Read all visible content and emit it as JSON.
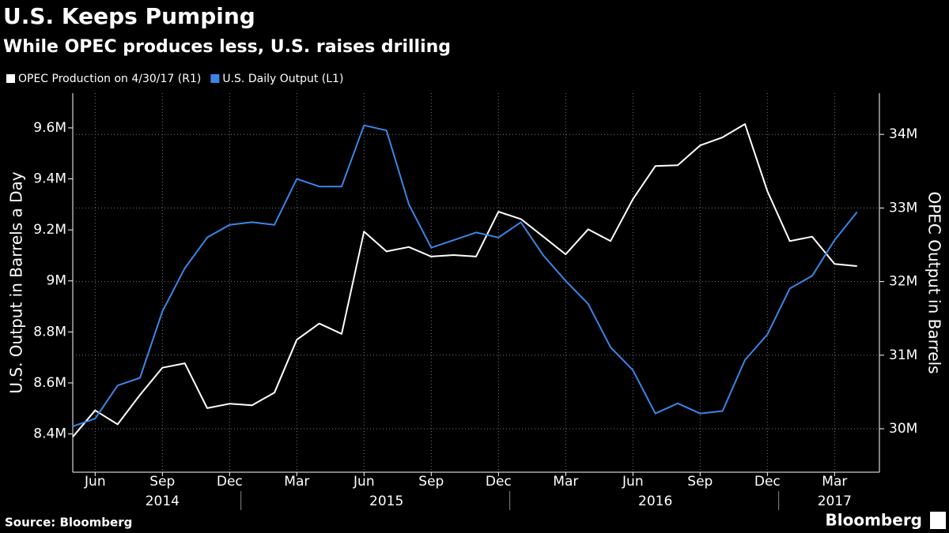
{
  "chart_data": {
    "type": "line",
    "title": "U.S. Keeps Pumping",
    "subtitle": "While OPEC produces less, U.S. raises drilling",
    "y_label": "U.S. Output in Barrels a Day",
    "y2_label": "OPEC Output in Barrels",
    "source": "Source: Bloomberg",
    "brand": "Bloomberg",
    "x": [
      "2014-05",
      "2014-06",
      "2014-07",
      "2014-08",
      "2014-09",
      "2014-10",
      "2014-11",
      "2014-12",
      "2015-01",
      "2015-02",
      "2015-03",
      "2015-04",
      "2015-05",
      "2015-06",
      "2015-07",
      "2015-08",
      "2015-09",
      "2015-10",
      "2015-11",
      "2015-12",
      "2016-01",
      "2016-02",
      "2016-03",
      "2016-04",
      "2016-05",
      "2016-06",
      "2016-07",
      "2016-08",
      "2016-09",
      "2016-10",
      "2016-11",
      "2016-12",
      "2017-01",
      "2017-02",
      "2017-03",
      "2017-04"
    ],
    "series": [
      {
        "name": "OPEC Production  on 4/30/17 (R1)",
        "color": "#ffffff",
        "axis": "y2",
        "values": [
          29.89,
          30.25,
          30.06,
          30.46,
          30.83,
          30.89,
          30.28,
          30.34,
          30.32,
          30.49,
          31.21,
          31.43,
          31.29,
          32.68,
          32.41,
          32.47,
          32.34,
          32.36,
          32.34,
          32.95,
          32.85,
          32.61,
          32.37,
          32.71,
          32.55,
          33.12,
          33.57,
          33.58,
          33.85,
          33.96,
          34.14,
          33.23,
          32.55,
          32.61,
          32.24,
          32.21
        ]
      },
      {
        "name": "U.S. Daily Output  (L1)",
        "color": "#3a86e6",
        "values": [
          8.43,
          8.46,
          8.59,
          8.62,
          8.88,
          9.05,
          9.17,
          9.22,
          9.23,
          9.22,
          9.4,
          9.37,
          9.37,
          9.61,
          9.59,
          9.3,
          9.13,
          9.16,
          9.19,
          9.17,
          9.23,
          9.1,
          9.0,
          8.91,
          8.74,
          8.65,
          8.48,
          8.52,
          8.48,
          8.49,
          8.69,
          8.79,
          8.97,
          9.02,
          9.16,
          9.27
        ]
      }
    ],
    "xlim": [
      "2014-05",
      "2017-05"
    ],
    "xticks": [
      {
        "value": "2014-06",
        "label": "Jun"
      },
      {
        "value": "2014-09",
        "label": "Sep"
      },
      {
        "value": "2014-12",
        "label": "Dec"
      },
      {
        "value": "2015-03",
        "label": "Mar"
      },
      {
        "value": "2015-06",
        "label": "Jun"
      },
      {
        "value": "2015-09",
        "label": "Sep"
      },
      {
        "value": "2015-12",
        "label": "Dec"
      },
      {
        "value": "2016-03",
        "label": "Mar"
      },
      {
        "value": "2016-06",
        "label": "Jun"
      },
      {
        "value": "2016-09",
        "label": "Sep"
      },
      {
        "value": "2016-12",
        "label": "Dec"
      },
      {
        "value": "2017-03",
        "label": "Mar"
      }
    ],
    "year_ticks": [
      2014,
      2015,
      2016,
      2017
    ],
    "ylim": [
      8.25,
      9.736
    ],
    "yticks": [
      {
        "value": 8.4,
        "label": "8.4M"
      },
      {
        "value": 8.6,
        "label": "8.6M"
      },
      {
        "value": 8.8,
        "label": "8.8M"
      },
      {
        "value": 9,
        "label": "9M"
      },
      {
        "value": 9.2,
        "label": "9.2M"
      },
      {
        "value": 9.4,
        "label": "9.4M"
      },
      {
        "value": 9.6,
        "label": "9.6M"
      }
    ],
    "y2lim": [
      29.41,
      34.56
    ],
    "y2ticks": [
      {
        "value": 30,
        "label": "30M"
      },
      {
        "value": 31,
        "label": "31M"
      },
      {
        "value": 32,
        "label": "32M"
      },
      {
        "value": 33,
        "label": "33M"
      },
      {
        "value": 34,
        "label": "34M"
      }
    ],
    "grid": true
  }
}
